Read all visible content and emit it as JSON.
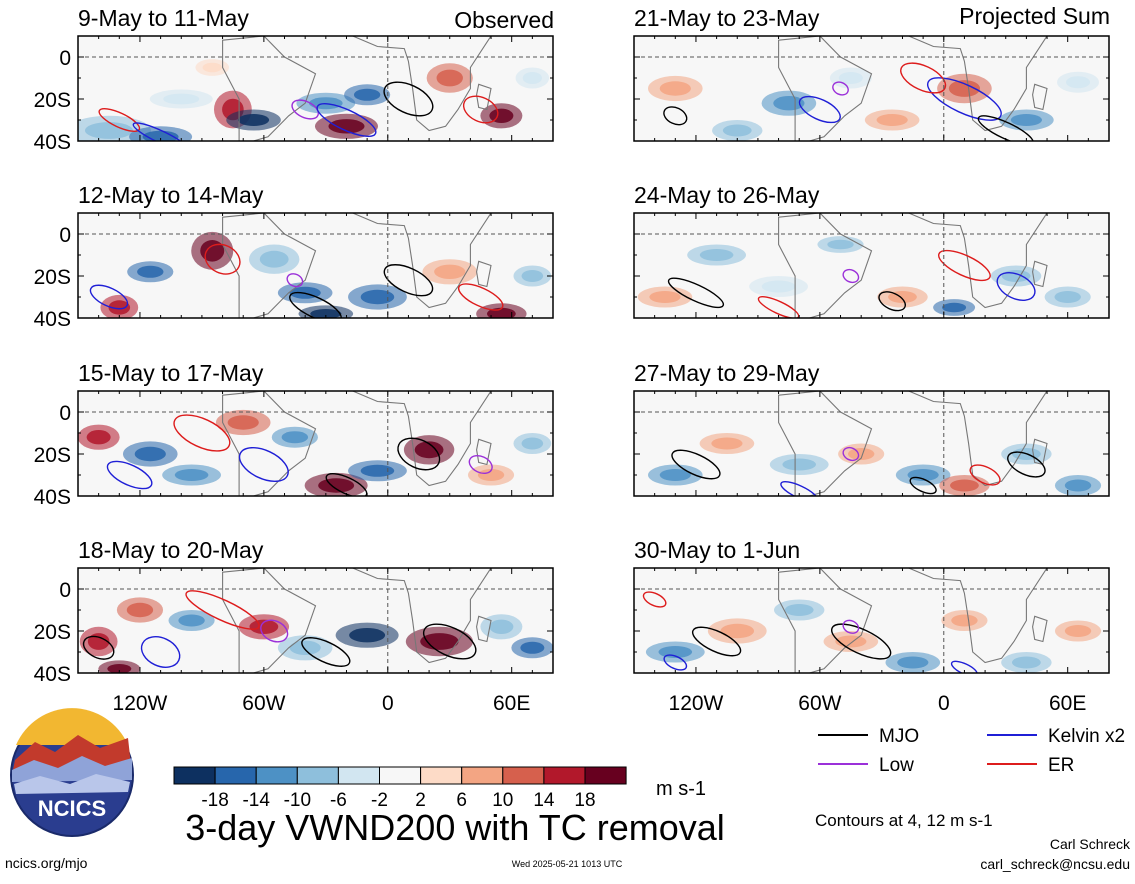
{
  "figure": {
    "title": "3-day VWND200 with TC removal",
    "footer_left": "ncics.org/mjo",
    "footer_center": "Wed 2025-05-21 1013 UTC",
    "footer_author": "Carl Schreck",
    "footer_email": "carl_schreck@ncsu.edu",
    "logo_text": "NCICS",
    "contour_note": "Contours at 4, 12 m s-1",
    "colorbar_units": "m s-1"
  },
  "columns": [
    {
      "header": "Observed"
    },
    {
      "header": "Projected Sum"
    }
  ],
  "colorbar": {
    "colors": [
      "#0d3060",
      "#2766ac",
      "#4d91c5",
      "#8ebfdc",
      "#d2e6f1",
      "#f7f7f7",
      "#fddbc7",
      "#f3a583",
      "#d6604d",
      "#b2182b",
      "#67001f"
    ],
    "tick_labels": [
      "-18",
      "-14",
      "-10",
      "-6",
      "-2",
      "2",
      "6",
      "10",
      "14",
      "18"
    ]
  },
  "legend": [
    {
      "label": "MJO",
      "color": "#000000"
    },
    {
      "label": "Kelvin x2",
      "color": "#1f1fd6"
    },
    {
      "label": "Low",
      "color": "#9b30d9"
    },
    {
      "label": "ER",
      "color": "#dd1c1c"
    }
  ],
  "chart_data": [
    {
      "type": "heatmap",
      "title": "9-May to 11-May",
      "column": "Observed",
      "yticks": [
        "0",
        "20S",
        "40S"
      ],
      "ylim": [
        -40,
        10
      ],
      "xlim": [
        -150,
        80
      ]
    },
    {
      "type": "heatmap",
      "title": "12-May to 14-May",
      "column": "Observed",
      "yticks": [
        "0",
        "20S",
        "40S"
      ],
      "ylim": [
        -40,
        10
      ],
      "xlim": [
        -150,
        80
      ]
    },
    {
      "type": "heatmap",
      "title": "15-May to 17-May",
      "column": "Observed",
      "yticks": [
        "0",
        "20S",
        "40S"
      ],
      "ylim": [
        -40,
        10
      ],
      "xlim": [
        -150,
        80
      ]
    },
    {
      "type": "heatmap",
      "title": "18-May to 20-May",
      "column": "Observed",
      "yticks": [
        "0",
        "20S",
        "40S"
      ],
      "xticks": [
        "120W",
        "60W",
        "0",
        "60E"
      ],
      "ylim": [
        -40,
        10
      ],
      "xlim": [
        -150,
        80
      ]
    },
    {
      "type": "heatmap",
      "title": "21-May to 23-May",
      "column": "Projected Sum",
      "ylim": [
        -40,
        10
      ],
      "xlim": [
        -150,
        80
      ]
    },
    {
      "type": "heatmap",
      "title": "24-May to 26-May",
      "column": "Projected Sum",
      "ylim": [
        -40,
        10
      ],
      "xlim": [
        -150,
        80
      ]
    },
    {
      "type": "heatmap",
      "title": "27-May to 29-May",
      "column": "Projected Sum",
      "ylim": [
        -40,
        10
      ],
      "xlim": [
        -150,
        80
      ]
    },
    {
      "type": "heatmap",
      "title": "30-May to 1-Jun",
      "column": "Projected Sum",
      "xticks": [
        "120W",
        "60W",
        "0",
        "60E"
      ],
      "ylim": [
        -40,
        10
      ],
      "xlim": [
        -150,
        80
      ]
    }
  ]
}
